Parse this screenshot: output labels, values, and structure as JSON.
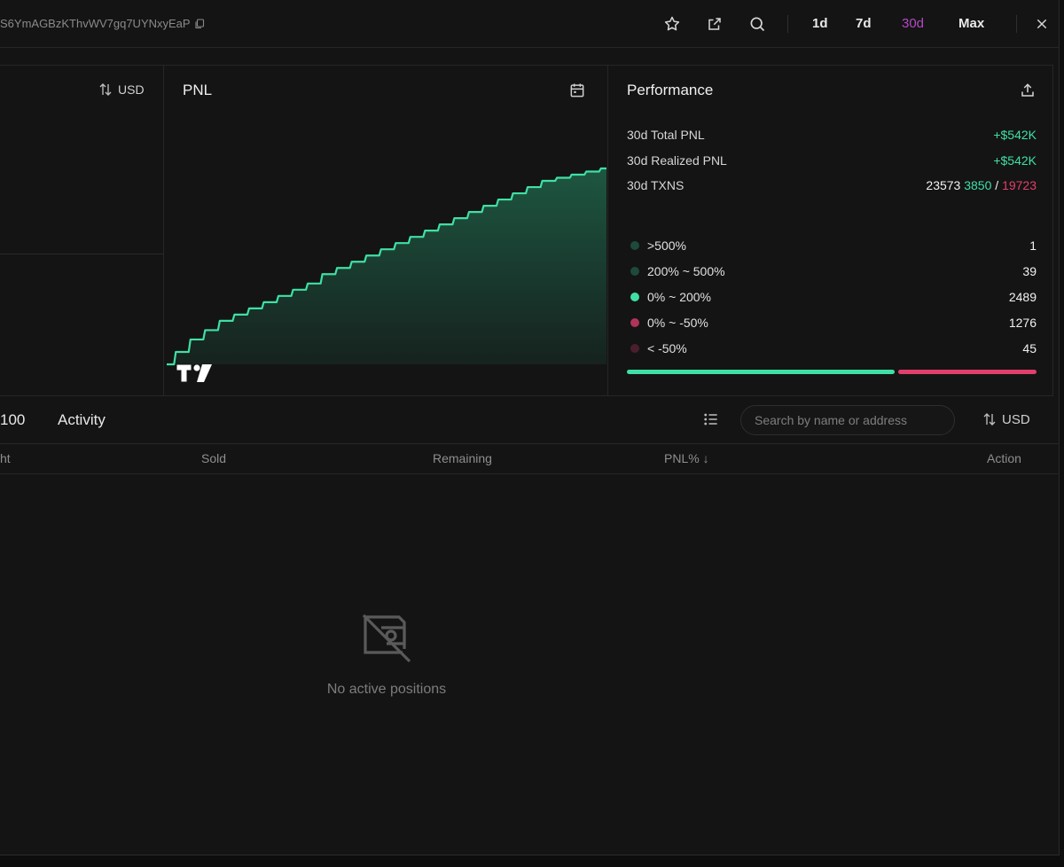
{
  "header": {
    "address": "S6YmAGBzKThvWV7gq7UYNxyEaP",
    "ranges": [
      "1d",
      "7d",
      "30d",
      "Max"
    ],
    "active_range": "30d"
  },
  "left_panel": {
    "currency": "USD"
  },
  "pnl": {
    "title": "PNL",
    "chart_data": {
      "type": "area",
      "title": "PNL",
      "x": [
        0,
        1,
        2,
        3,
        4,
        5,
        6,
        7,
        8,
        9,
        10,
        11,
        12,
        13,
        14,
        15,
        16,
        17,
        18,
        19,
        20,
        21,
        22,
        23,
        24,
        25,
        26,
        27,
        28,
        29,
        30
      ],
      "values": [
        0,
        4,
        8,
        11,
        14,
        16,
        18,
        20,
        22,
        24,
        26,
        29,
        31,
        33,
        35,
        37,
        39,
        41,
        43,
        45,
        47,
        49,
        51,
        53,
        55,
        57,
        59,
        60,
        61,
        62,
        63
      ],
      "series_color": "#3fe0a4"
    }
  },
  "performance": {
    "title": "Performance",
    "total_pnl_label": "30d Total PNL",
    "total_pnl_value": "+$542K",
    "realized_pnl_label": "30d Realized PNL",
    "realized_pnl_value": "+$542K",
    "txns_label": "30d TXNS",
    "txns_total": "23573",
    "txns_buys": "3850",
    "txns_sep": "/",
    "txns_sells": "19723",
    "distribution": [
      {
        "label": ">500%",
        "count": "1",
        "color": "#1e4a39"
      },
      {
        "label": "200% ~ 500%",
        "count": "39",
        "color": "#1e4a39"
      },
      {
        "label": "0% ~ 200%",
        "count": "2489",
        "color": "#3fe0a4"
      },
      {
        "label": "0% ~ -50%",
        "count": "1276",
        "color": "#b0335a"
      },
      {
        "label": "< -50%",
        "count": "45",
        "color": "#4a1f2c"
      }
    ],
    "win_ratio": 0.66
  },
  "tabs": {
    "cut_label": "100",
    "activity": "Activity"
  },
  "search": {
    "placeholder": "Search by name or address"
  },
  "table_currency": "USD",
  "columns": {
    "bought": "ht",
    "sold": "Sold",
    "remaining": "Remaining",
    "pnl": "PNL% ↓",
    "action": "Action"
  },
  "empty_state": {
    "message": "No active positions"
  }
}
